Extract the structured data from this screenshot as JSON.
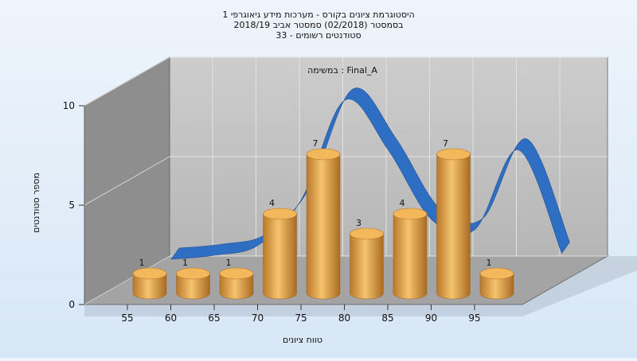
{
  "chart_data": {
    "type": "bar",
    "title_lines": [
      "היסטוגרמת ציונים בקורס - מערכות מידע גיאוגרפי 1",
      "בסמסטר (02/2018) סמסטר אביב 2018/19",
      "סטודנטים רשומים - 33"
    ],
    "subtitle": "במשימה : Final_A",
    "xlabel": "טווח ציונים",
    "ylabel": "מספר סטודנטים",
    "x_ticks": [
      "55",
      "60",
      "65",
      "70",
      "75",
      "80",
      "85",
      "90",
      "95"
    ],
    "y_ticks": [
      "0",
      "5",
      "10"
    ],
    "ylim": [
      0,
      10
    ],
    "bars": [
      {
        "x": 55,
        "value": 1
      },
      {
        "x": 60,
        "value": 1
      },
      {
        "x": 65,
        "value": 1
      },
      {
        "x": 70,
        "value": 4
      },
      {
        "x": 75,
        "value": 7
      },
      {
        "x": 80,
        "value": 3
      },
      {
        "x": 85,
        "value": 4
      },
      {
        "x": 90,
        "value": 7
      },
      {
        "x": 95,
        "value": 1
      }
    ],
    "curve": [
      0.0,
      0.2,
      0.7,
      3.0,
      8.0,
      5.5,
      2.0,
      1.5,
      5.5,
      0.3
    ],
    "colors": {
      "bar": "#e9a447",
      "curve": "#2f6fc3",
      "back_wall": "#c0c0c0",
      "left_wall": "#8e8e8e",
      "floor": "#a4a4a4"
    },
    "grid": true
  }
}
